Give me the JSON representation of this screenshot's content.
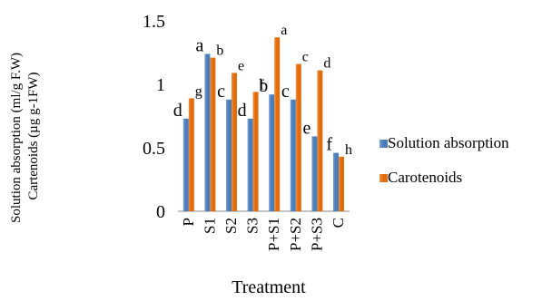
{
  "chart_data": {
    "type": "bar",
    "title": "",
    "xlabel": "Treatment",
    "ylabel_line1": "Solution absorption (ml/g F.W)",
    "ylabel_line2": "Cartenoids (µg g-1FW)",
    "ylim": [
      0,
      1.5
    ],
    "yticks": [
      "0",
      "0.5",
      "1",
      "1.5"
    ],
    "ytick_values": [
      0,
      0.5,
      1,
      1.5
    ],
    "grid": false,
    "legend_position": "right",
    "categories": [
      "P",
      "S1",
      "S2",
      "S3",
      "P+S1",
      "P+S2",
      "P+S3",
      "C"
    ],
    "series": [
      {
        "name": "Solution absorption",
        "color": "#4A7EBB",
        "values": [
          0.73,
          1.24,
          0.88,
          0.73,
          0.92,
          0.88,
          0.59,
          0.46
        ],
        "letters": [
          "d",
          "a",
          "c",
          "d",
          "b",
          "c",
          "e",
          "f"
        ]
      },
      {
        "name": "Carotenoids",
        "color": "#E46C0A",
        "values": [
          0.89,
          1.21,
          1.09,
          0.94,
          1.37,
          1.16,
          1.11,
          0.43
        ],
        "letters": [
          "g",
          "b",
          "e",
          "f",
          "a",
          "c",
          "d",
          "h"
        ]
      }
    ]
  }
}
